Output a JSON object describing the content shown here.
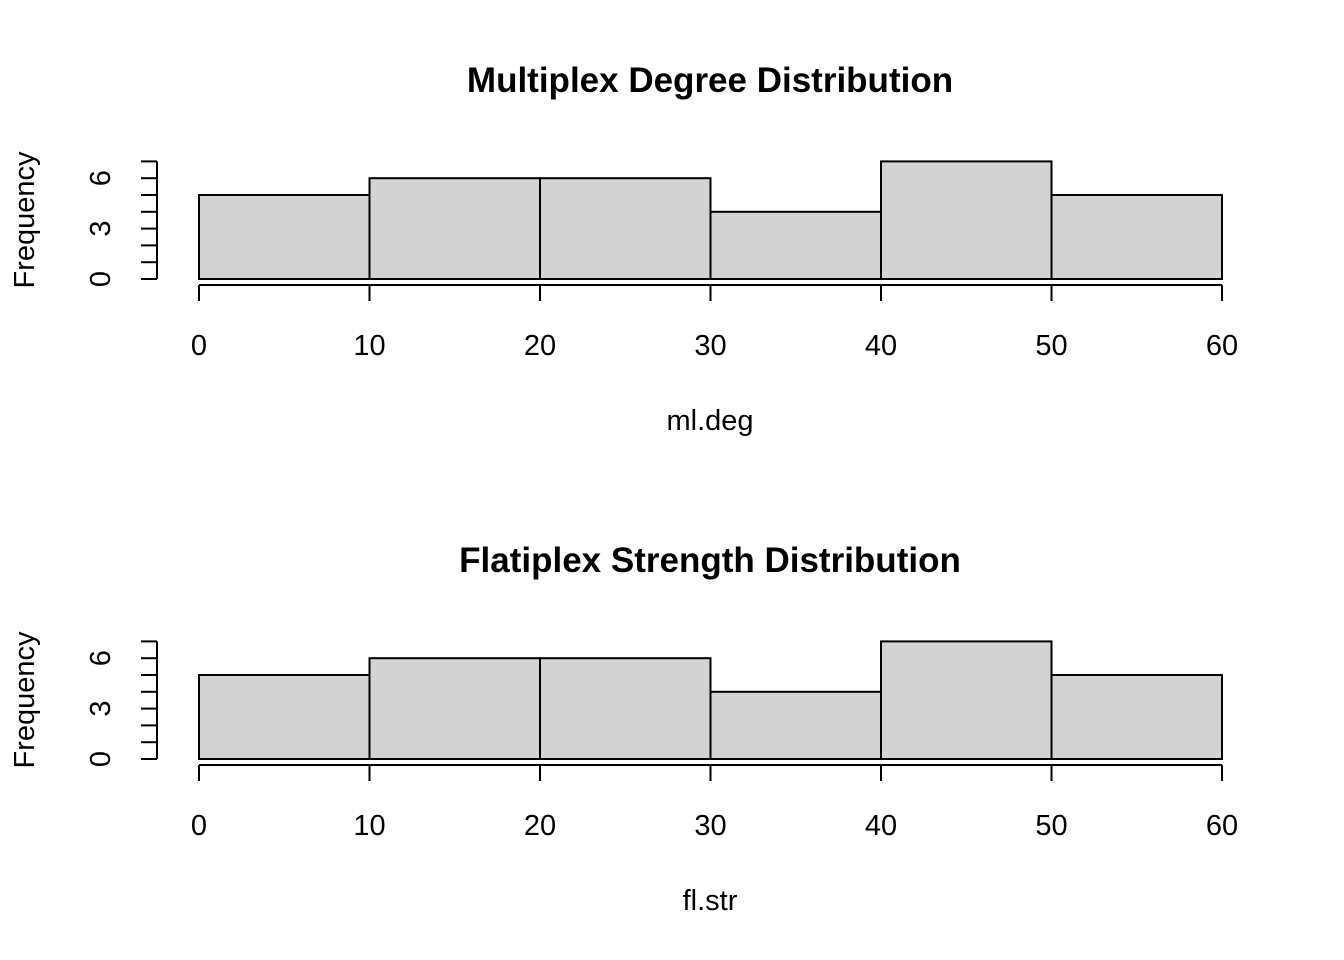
{
  "chart_data": [
    {
      "type": "bar",
      "title": "Multiplex Degree Distribution",
      "xlabel": "ml.deg",
      "ylabel": "Frequency",
      "bins": [
        [
          0,
          10
        ],
        [
          10,
          20
        ],
        [
          20,
          30
        ],
        [
          30,
          40
        ],
        [
          40,
          50
        ],
        [
          50,
          60
        ]
      ],
      "values": [
        5,
        6,
        6,
        4,
        7,
        5
      ],
      "xticks": [
        "0",
        "10",
        "20",
        "30",
        "40",
        "50",
        "60"
      ],
      "yticks": [
        "0",
        "3",
        "6"
      ],
      "xlim": [
        0,
        60
      ],
      "ylim": [
        0,
        7
      ],
      "bar_color": "#d3d3d3",
      "grid": false
    },
    {
      "type": "bar",
      "title": "Flatiplex Strength Distribution",
      "xlabel": "fl.str",
      "ylabel": "Frequency",
      "bins": [
        [
          0,
          10
        ],
        [
          10,
          20
        ],
        [
          20,
          30
        ],
        [
          30,
          40
        ],
        [
          40,
          50
        ],
        [
          50,
          60
        ]
      ],
      "values": [
        5,
        6,
        6,
        4,
        7,
        5
      ],
      "xticks": [
        "0",
        "10",
        "20",
        "30",
        "40",
        "50",
        "60"
      ],
      "yticks": [
        "0",
        "3",
        "6"
      ],
      "xlim": [
        0,
        60
      ],
      "ylim": [
        0,
        7
      ],
      "bar_color": "#d3d3d3",
      "grid": false
    }
  ]
}
